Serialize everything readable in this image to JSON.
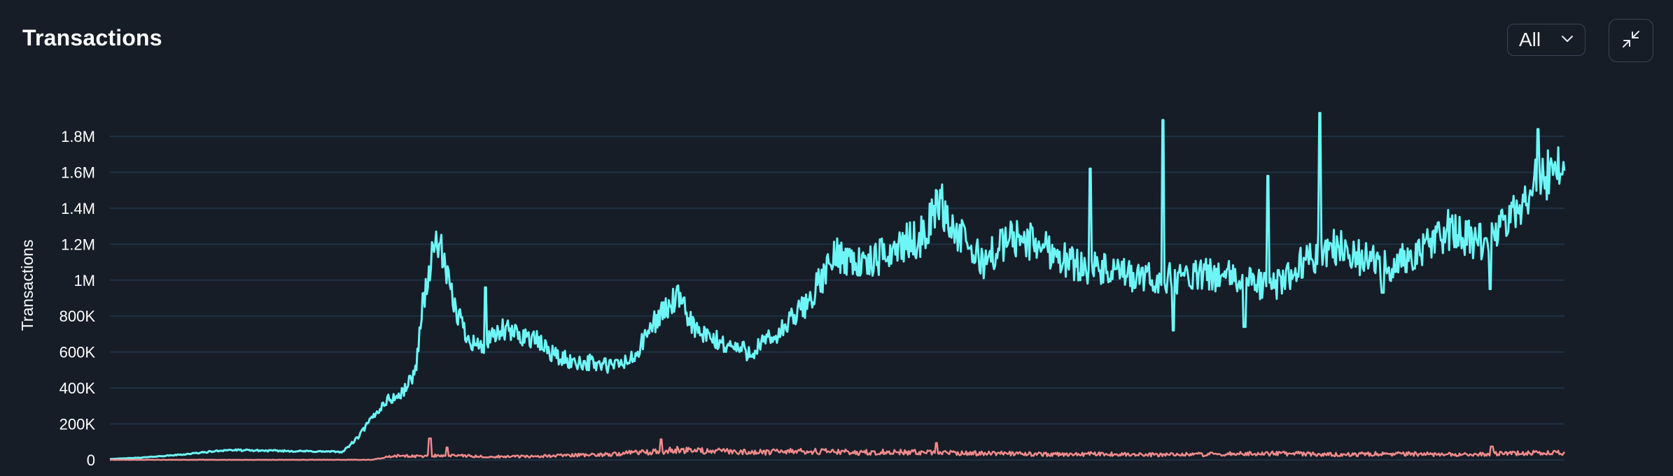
{
  "header": {
    "title": "Transactions",
    "range_select_value": "All",
    "range_select_icon": "chevron-down-icon",
    "collapse_icon": "collapse-arrows-icon"
  },
  "colors": {
    "background": "#161d27",
    "grid": "#1f3144",
    "series_primary": "#6ef6f6",
    "series_secondary": "#f08a8a"
  },
  "chart_data": {
    "type": "line",
    "title": "",
    "xlabel": "",
    "ylabel": "Transactions",
    "ylim": [
      0,
      1800000
    ],
    "yticks": [
      0,
      200000,
      400000,
      600000,
      800000,
      1000000,
      1200000,
      1400000,
      1600000,
      1800000
    ],
    "ytick_labels": [
      "0",
      "200K",
      "400K",
      "600K",
      "800K",
      "1M",
      "1.2M",
      "1.4M",
      "1.6M",
      "1.8M"
    ],
    "grid": true,
    "legend": "none",
    "x_positions": [
      0,
      0.02,
      0.05,
      0.08,
      0.12,
      0.16,
      0.17,
      0.18,
      0.19,
      0.2,
      0.21,
      0.215,
      0.225,
      0.235,
      0.245,
      0.255,
      0.27,
      0.29,
      0.31,
      0.33,
      0.345,
      0.36,
      0.375,
      0.39,
      0.405,
      0.42,
      0.44,
      0.46,
      0.48,
      0.5,
      0.52,
      0.54,
      0.56,
      0.57,
      0.58,
      0.6,
      0.62,
      0.64,
      0.66,
      0.68,
      0.7,
      0.72,
      0.74,
      0.76,
      0.78,
      0.8,
      0.82,
      0.84,
      0.86,
      0.88,
      0.9,
      0.92,
      0.94,
      0.96,
      0.98,
      1.0
    ],
    "series": [
      {
        "values": [
          5000,
          12000,
          30000,
          55000,
          50000,
          45000,
          120000,
          230000,
          330000,
          360000,
          490000,
          870000,
          1250000,
          900000,
          700000,
          620000,
          720000,
          680000,
          560000,
          540000,
          520000,
          560000,
          780000,
          900000,
          700000,
          650000,
          600000,
          700000,
          880000,
          1150000,
          1080000,
          1180000,
          1250000,
          1450000,
          1280000,
          1100000,
          1240000,
          1200000,
          1100000,
          1060000,
          1020000,
          1000000,
          1020000,
          1030000,
          1000000,
          960000,
          1100000,
          1200000,
          1120000,
          1080000,
          1150000,
          1280000,
          1200000,
          1300000,
          1550000,
          1650000
        ],
        "spikes": [
          {
            "x": 0.258,
            "value": 960000
          },
          {
            "x": 0.318,
            "value": 560000
          },
          {
            "x": 0.674,
            "value": 1620000
          },
          {
            "x": 0.724,
            "value": 1890000
          },
          {
            "x": 0.796,
            "value": 1580000
          },
          {
            "x": 0.832,
            "value": 1930000
          },
          {
            "x": 0.982,
            "value": 1840000
          }
        ],
        "dips": [
          {
            "x": 0.731,
            "value": 720000
          },
          {
            "x": 0.78,
            "value": 740000
          },
          {
            "x": 0.875,
            "value": 930000
          },
          {
            "x": 0.949,
            "value": 950000
          }
        ]
      },
      {
        "values": [
          0,
          0,
          0,
          0,
          0,
          0,
          0,
          0,
          15000,
          25000,
          20000,
          22000,
          25000,
          24000,
          22000,
          20000,
          18000,
          20000,
          24000,
          28000,
          32000,
          40000,
          45000,
          55000,
          50000,
          48000,
          42000,
          45000,
          48000,
          45000,
          42000,
          45000,
          40000,
          38000,
          38000,
          36000,
          35000,
          32000,
          30000,
          34000,
          30000,
          28000,
          30000,
          32000,
          34000,
          36000,
          34000,
          30000,
          32000,
          35000,
          33000,
          30000,
          32000,
          35000,
          40000,
          42000
        ],
        "spikes": [
          {
            "x": 0.22,
            "value": 120000
          },
          {
            "x": 0.232,
            "value": 70000
          },
          {
            "x": 0.379,
            "value": 115000
          },
          {
            "x": 0.568,
            "value": 95000
          },
          {
            "x": 0.95,
            "value": 75000
          }
        ],
        "dips": []
      }
    ]
  }
}
